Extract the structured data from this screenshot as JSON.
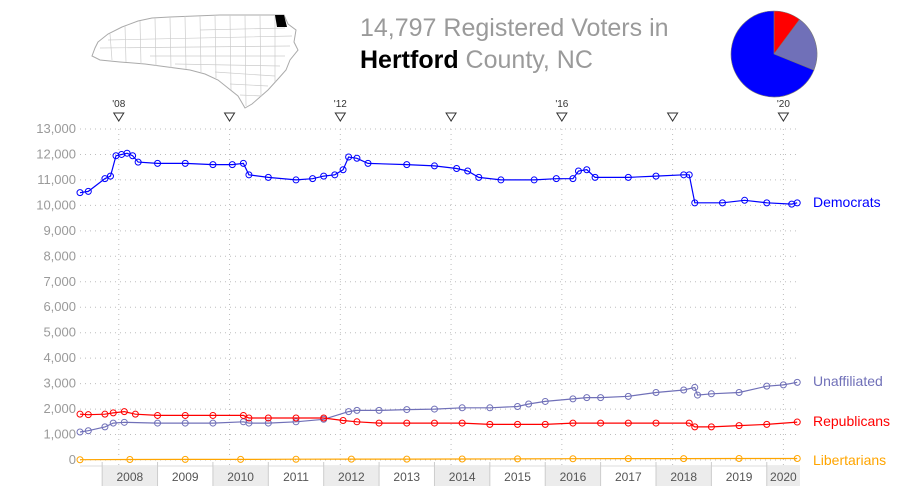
{
  "header": {
    "title_count": "14,797",
    "title_suffix": " Registered Voters in",
    "county": "Hertford",
    "county_suffix": " County, NC"
  },
  "map": {
    "icon": "north-carolina-county-map",
    "highlight_color": "#000000"
  },
  "pie": {
    "slices": [
      {
        "party": "Republicans",
        "value": 1490,
        "color": "#ff0000"
      },
      {
        "party": "Unaffiliated",
        "value": 3070,
        "color": "#7070b8"
      },
      {
        "party": "Democrats",
        "value": 10100,
        "color": "#0000ff"
      }
    ]
  },
  "chart_data": {
    "type": "line",
    "y_ticks": [
      "0",
      "1,000",
      "2,000",
      "3,000",
      "4,000",
      "5,000",
      "6,000",
      "7,000",
      "8,000",
      "9,000",
      "10,000",
      "11,000",
      "12,000",
      "13,000"
    ],
    "ylim": [
      0,
      13000
    ],
    "xlim": [
      2007.6,
      2020.6
    ],
    "x_ticks": [
      "2008",
      "2009",
      "2010",
      "2011",
      "2012",
      "2013",
      "2014",
      "2015",
      "2016",
      "2017",
      "2018",
      "2019",
      "2020"
    ],
    "grid": "dotted",
    "election_markers": [
      {
        "x": 2008.3,
        "label": "'08"
      },
      {
        "x": 2010.3,
        "label": ""
      },
      {
        "x": 2012.3,
        "label": "'12"
      },
      {
        "x": 2014.3,
        "label": ""
      },
      {
        "x": 2016.3,
        "label": "'16"
      },
      {
        "x": 2018.3,
        "label": ""
      },
      {
        "x": 2020.3,
        "label": "'20"
      }
    ],
    "series": [
      {
        "name": "Democrats",
        "color": "#0000ff",
        "points": [
          [
            2007.6,
            10500
          ],
          [
            2007.75,
            10550
          ],
          [
            2008.05,
            11050
          ],
          [
            2008.15,
            11150
          ],
          [
            2008.25,
            11950
          ],
          [
            2008.35,
            12000
          ],
          [
            2008.45,
            12050
          ],
          [
            2008.55,
            11950
          ],
          [
            2008.65,
            11700
          ],
          [
            2009.0,
            11650
          ],
          [
            2009.5,
            11650
          ],
          [
            2010.0,
            11600
          ],
          [
            2010.35,
            11600
          ],
          [
            2010.55,
            11650
          ],
          [
            2010.65,
            11200
          ],
          [
            2011.0,
            11100
          ],
          [
            2011.5,
            11000
          ],
          [
            2011.8,
            11050
          ],
          [
            2012.0,
            11150
          ],
          [
            2012.2,
            11200
          ],
          [
            2012.35,
            11400
          ],
          [
            2012.45,
            11900
          ],
          [
            2012.6,
            11850
          ],
          [
            2012.8,
            11650
          ],
          [
            2013.5,
            11600
          ],
          [
            2014.0,
            11550
          ],
          [
            2014.4,
            11450
          ],
          [
            2014.6,
            11350
          ],
          [
            2014.8,
            11100
          ],
          [
            2015.2,
            11000
          ],
          [
            2015.8,
            11000
          ],
          [
            2016.2,
            11050
          ],
          [
            2016.5,
            11050
          ],
          [
            2016.6,
            11350
          ],
          [
            2016.75,
            11400
          ],
          [
            2016.9,
            11100
          ],
          [
            2017.5,
            11100
          ],
          [
            2018.0,
            11150
          ],
          [
            2018.5,
            11200
          ],
          [
            2018.6,
            11200
          ],
          [
            2018.7,
            10100
          ],
          [
            2019.2,
            10100
          ],
          [
            2019.6,
            10200
          ],
          [
            2020.0,
            10100
          ],
          [
            2020.45,
            10050
          ],
          [
            2020.55,
            10100
          ]
        ]
      },
      {
        "name": "Unaffiliated",
        "color": "#7070b8",
        "points": [
          [
            2007.6,
            1100
          ],
          [
            2007.75,
            1150
          ],
          [
            2008.05,
            1300
          ],
          [
            2008.2,
            1450
          ],
          [
            2008.4,
            1480
          ],
          [
            2009.0,
            1450
          ],
          [
            2009.5,
            1450
          ],
          [
            2010.0,
            1450
          ],
          [
            2010.55,
            1500
          ],
          [
            2010.65,
            1450
          ],
          [
            2011.0,
            1450
          ],
          [
            2011.5,
            1500
          ],
          [
            2012.0,
            1600
          ],
          [
            2012.45,
            1900
          ],
          [
            2012.6,
            1950
          ],
          [
            2013.0,
            1950
          ],
          [
            2013.5,
            1980
          ],
          [
            2014.0,
            2000
          ],
          [
            2014.5,
            2050
          ],
          [
            2015.0,
            2050
          ],
          [
            2015.5,
            2100
          ],
          [
            2015.7,
            2200
          ],
          [
            2016.0,
            2300
          ],
          [
            2016.5,
            2400
          ],
          [
            2016.75,
            2450
          ],
          [
            2017.0,
            2450
          ],
          [
            2017.5,
            2500
          ],
          [
            2018.0,
            2650
          ],
          [
            2018.5,
            2750
          ],
          [
            2018.7,
            2850
          ],
          [
            2018.75,
            2550
          ],
          [
            2019.0,
            2600
          ],
          [
            2019.5,
            2650
          ],
          [
            2020.0,
            2900
          ],
          [
            2020.3,
            2950
          ],
          [
            2020.55,
            3050
          ]
        ]
      },
      {
        "name": "Republicans",
        "color": "#ff0000",
        "points": [
          [
            2007.6,
            1800
          ],
          [
            2007.75,
            1780
          ],
          [
            2008.05,
            1800
          ],
          [
            2008.2,
            1850
          ],
          [
            2008.4,
            1900
          ],
          [
            2008.6,
            1800
          ],
          [
            2009.0,
            1750
          ],
          [
            2009.5,
            1750
          ],
          [
            2010.0,
            1750
          ],
          [
            2010.55,
            1750
          ],
          [
            2010.65,
            1650
          ],
          [
            2011.0,
            1650
          ],
          [
            2011.5,
            1650
          ],
          [
            2012.0,
            1650
          ],
          [
            2012.35,
            1550
          ],
          [
            2012.6,
            1500
          ],
          [
            2013.0,
            1450
          ],
          [
            2013.5,
            1450
          ],
          [
            2014.0,
            1450
          ],
          [
            2014.5,
            1450
          ],
          [
            2015.0,
            1400
          ],
          [
            2015.5,
            1400
          ],
          [
            2016.0,
            1400
          ],
          [
            2016.5,
            1450
          ],
          [
            2017.0,
            1450
          ],
          [
            2017.5,
            1450
          ],
          [
            2018.0,
            1450
          ],
          [
            2018.6,
            1450
          ],
          [
            2018.7,
            1300
          ],
          [
            2019.0,
            1300
          ],
          [
            2019.5,
            1350
          ],
          [
            2020.0,
            1400
          ],
          [
            2020.55,
            1490
          ]
        ]
      },
      {
        "name": "Libertarians",
        "color": "#ffa500",
        "points": [
          [
            2007.6,
            10
          ],
          [
            2008.5,
            20
          ],
          [
            2009.5,
            25
          ],
          [
            2010.5,
            25
          ],
          [
            2011.5,
            30
          ],
          [
            2012.5,
            35
          ],
          [
            2013.5,
            35
          ],
          [
            2014.5,
            40
          ],
          [
            2015.5,
            45
          ],
          [
            2016.5,
            50
          ],
          [
            2017.5,
            55
          ],
          [
            2018.5,
            55
          ],
          [
            2019.5,
            60
          ],
          [
            2020.55,
            60
          ]
        ]
      }
    ]
  }
}
